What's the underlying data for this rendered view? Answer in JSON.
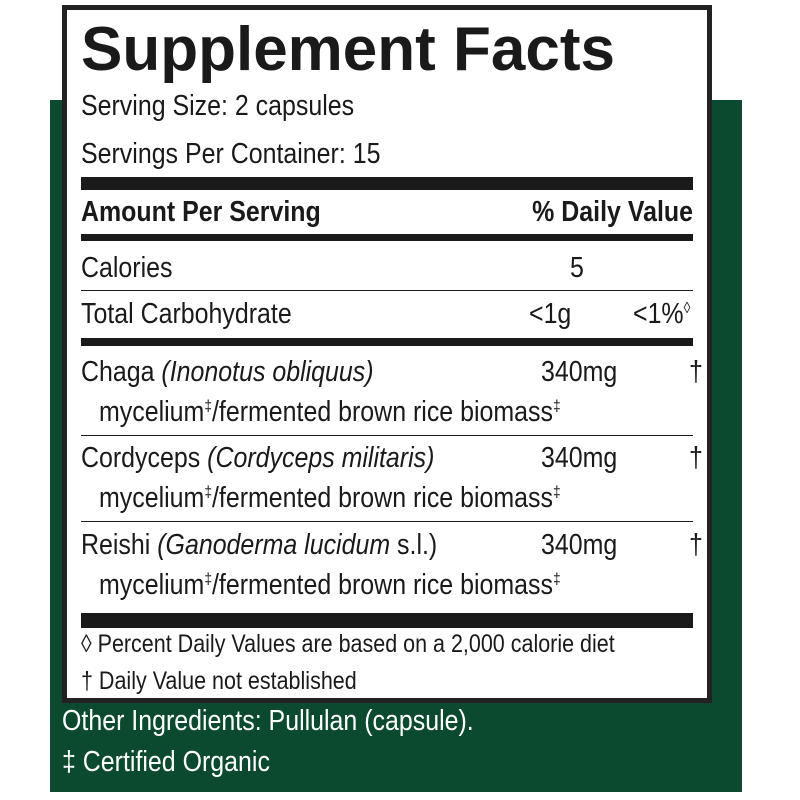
{
  "title": "Supplement Facts",
  "serving_size": "Serving Size: 2 capsules",
  "servings_per_container": "Servings Per Container: 15",
  "header": {
    "amount": "Amount Per Serving",
    "dv": "% Daily Value"
  },
  "nutrients": [
    {
      "name": "Calories",
      "amount": "5",
      "dv": ""
    },
    {
      "name": "Total Carbohydrate",
      "amount": "<1g",
      "dv": "<1%",
      "dv_mark": "◊"
    }
  ],
  "ingredients": [
    {
      "name": "Chaga",
      "latin": "(Inonotus obliquus)",
      "latin_suffix": "",
      "amount": "340mg",
      "dv": "†",
      "sub1": "mycelium",
      "sub2": "/fermented brown rice biomass",
      "mark": "‡"
    },
    {
      "name": "Cordyceps",
      "latin": "(Cordyceps militaris)",
      "latin_suffix": "",
      "amount": "340mg",
      "dv": "†",
      "sub1": "mycelium",
      "sub2": "/fermented brown rice biomass",
      "mark": "‡"
    },
    {
      "name": "Reishi",
      "latin": "(Ganoderma lucidum",
      "latin_suffix": " s.l.)",
      "amount": "340mg",
      "dv": "†",
      "sub1": "mycelium",
      "sub2": "/fermented brown rice biomass",
      "mark": "‡"
    }
  ],
  "footnotes": [
    "◊ Percent Daily Values are based on a 2,000 calorie diet",
    "† Daily Value not established"
  ],
  "other_ingredients": "Other Ingredients: Pullulan (capsule).",
  "certified": "‡ Certified Organic",
  "colors": {
    "background_green": "#0b4a2f",
    "text": "#1a1a1a"
  }
}
